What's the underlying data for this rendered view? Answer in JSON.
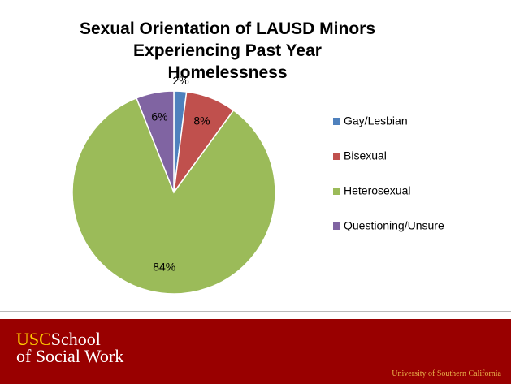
{
  "chart_data": {
    "type": "pie",
    "title": "Sexual Orientation of LAUSD Minors Experiencing Past Year Homelessness",
    "categories": [
      "Gay/Lesbian",
      "Bisexual",
      "Heterosexual",
      "Questioning/Unsure"
    ],
    "values": [
      2,
      8,
      84,
      6
    ],
    "value_labels": [
      "2%",
      "8%",
      "84%",
      "6%"
    ],
    "colors": [
      "#4f81bd",
      "#c0504d",
      "#9bbb59",
      "#8064a2"
    ],
    "legend": "right"
  },
  "footer": {
    "brand": "USC",
    "school": "School",
    "school_line2": "of Social Work",
    "university": "University of Southern California"
  }
}
